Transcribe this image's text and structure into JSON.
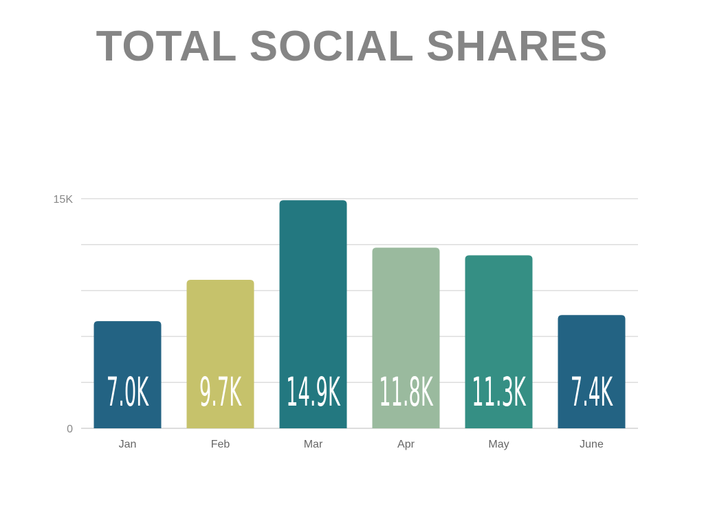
{
  "chart_data": {
    "type": "bar",
    "title": "TOTAL SOCIAL SHARES",
    "categories": [
      "Jan",
      "Feb",
      "Mar",
      "Apr",
      "May",
      "June"
    ],
    "values": [
      7.0,
      9.7,
      14.9,
      11.8,
      11.3,
      7.4
    ],
    "data_labels": [
      "7.0K",
      "9.7K",
      "14.9K",
      "11.8K",
      "11.3K",
      "7.4K"
    ],
    "bar_colors": [
      "#236383",
      "#c6c26b",
      "#237880",
      "#9aba9e",
      "#358f84",
      "#236383"
    ],
    "ylim": [
      0,
      15
    ],
    "y_tick_labels": [
      "0",
      "15K"
    ],
    "gridlines": [
      0,
      3,
      6,
      9,
      12,
      15
    ],
    "grid": true,
    "grid_color": "#dddddd",
    "legend": "none"
  }
}
